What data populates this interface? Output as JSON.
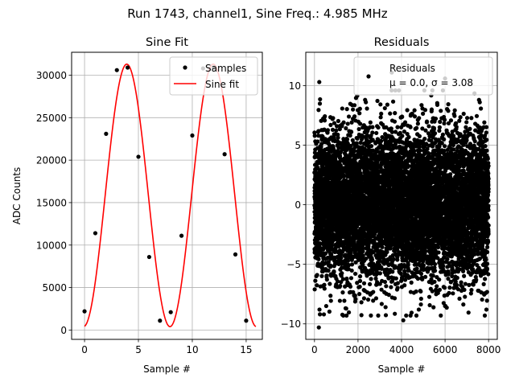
{
  "figure": {
    "suptitle": "Run 1743, channel1, Sine Freq.: 4.985 MHz"
  },
  "chart_data": [
    {
      "type": "line",
      "title": "Sine Fit",
      "xlabel": "Sample #",
      "ylabel": "ADC Counts",
      "xlim": [
        -1.2,
        16.5
      ],
      "ylim": [
        -1100,
        32700
      ],
      "xticks": [
        0,
        5,
        10,
        15
      ],
      "yticks": [
        0,
        5000,
        10000,
        15000,
        20000,
        25000,
        30000
      ],
      "grid": true,
      "legend_position": "top-right",
      "series": [
        {
          "name": "Samples",
          "style": "points",
          "color": "#000000",
          "x": [
            0,
            1,
            2,
            3,
            4,
            5,
            6,
            7,
            8,
            9,
            10,
            11,
            12,
            13,
            14,
            15
          ],
          "y": [
            2200,
            11400,
            23100,
            30600,
            30900,
            20400,
            8600,
            1100,
            2100,
            11100,
            22900,
            30800,
            30900,
            20700,
            8900,
            1100
          ]
        },
        {
          "name": "Sine fit",
          "style": "line",
          "color": "#ff0000",
          "model": {
            "offset": 15850,
            "amplitude": 15450,
            "period": 8.02,
            "phase_rad": -1.5,
            "x_start": 0,
            "x_end": 15.9
          }
        }
      ]
    },
    {
      "type": "scatter",
      "title": "Residuals",
      "xlabel": "Sample #",
      "ylabel": "",
      "xlim": [
        -400,
        8400
      ],
      "ylim": [
        -11.3,
        12.8
      ],
      "xticks": [
        0,
        2000,
        4000,
        6000,
        8000
      ],
      "yticks": [
        -10,
        -5,
        0,
        5,
        10
      ],
      "grid": true,
      "legend_position": "top-right",
      "legend": {
        "line1": "Residuals",
        "line2": "μ = 0.0, σ = 3.08"
      },
      "series": [
        {
          "name": "Residuals",
          "color": "#000000",
          "count": 8000,
          "x_range": [
            0,
            8000
          ],
          "mean": 0.0,
          "std": 3.08,
          "outliers": [
            {
              "x": 200,
              "y": -10.3
            },
            {
              "x": 250,
              "y": -9.2
            },
            {
              "x": 230,
              "y": -8.8
            },
            {
              "x": 4080,
              "y": -9.7
            },
            {
              "x": 3550,
              "y": 11.1
            },
            {
              "x": 220,
              "y": 10.3
            },
            {
              "x": 6000,
              "y": 10.6
            },
            {
              "x": 7900,
              "y": -8.8
            }
          ]
        }
      ]
    }
  ]
}
